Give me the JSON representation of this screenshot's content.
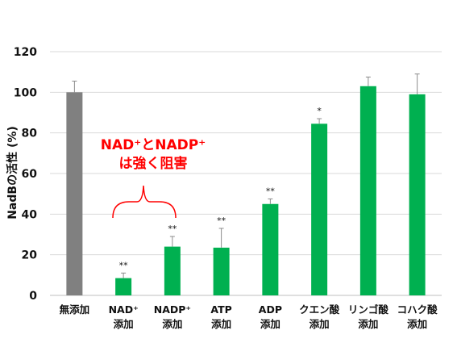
{
  "chart_data": {
    "type": "bar",
    "ylabel": "NadBの活性 (%)",
    "ylim": [
      0,
      120
    ],
    "yticks": [
      0,
      20,
      40,
      60,
      80,
      100,
      120
    ],
    "grid": true,
    "categories": [
      [
        "無添加"
      ],
      [
        "NAD⁺",
        "添加"
      ],
      [
        "NADP⁺",
        "添加"
      ],
      [
        "ATP",
        "添加"
      ],
      [
        "ADP",
        "添加"
      ],
      [
        "クエン酸",
        "添加"
      ],
      [
        "リンゴ酸",
        "添加"
      ],
      [
        "コハク酸",
        "添加"
      ]
    ],
    "values": [
      100,
      8.5,
      24,
      23.5,
      45,
      84.5,
      103,
      99
    ],
    "errors": [
      5.5,
      2.5,
      5,
      9.5,
      2.5,
      2.5,
      4.5,
      10
    ],
    "significance": [
      "",
      "**",
      "**",
      "**",
      "**",
      "*",
      "",
      ""
    ],
    "colors": [
      "#808080",
      "#00b050",
      "#00b050",
      "#00b050",
      "#00b050",
      "#00b050",
      "#00b050",
      "#00b050"
    ],
    "annotation": {
      "lines": [
        "NAD⁺とNADP⁺",
        "は強く阻害"
      ],
      "color": "#ff0000"
    }
  }
}
